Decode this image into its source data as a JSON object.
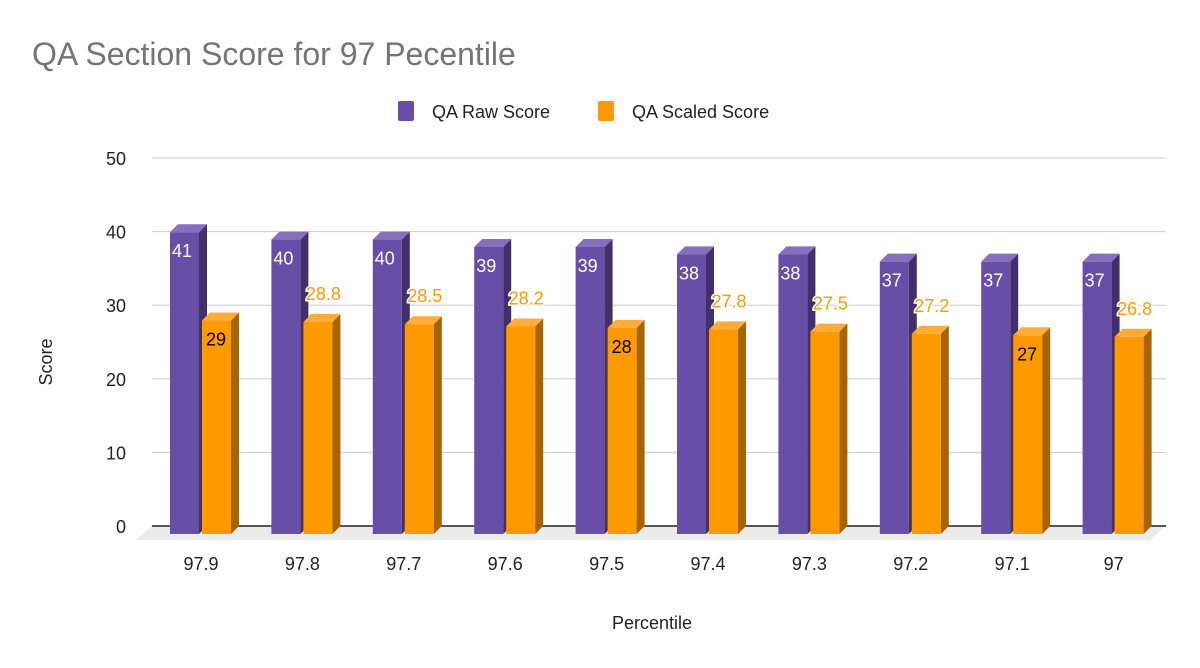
{
  "chart_data": {
    "type": "bar",
    "title": "QA Section Score for 97 Pecentile",
    "xlabel": "Percentile",
    "ylabel": "Score",
    "categories": [
      "97.9",
      "97.8",
      "97.7",
      "97.6",
      "97.5",
      "97.4",
      "97.3",
      "97.2",
      "97.1",
      "97"
    ],
    "series": [
      {
        "name": "QA Raw Score",
        "color": "#674ea7",
        "values": [
          41,
          40,
          40,
          39,
          39,
          38,
          38,
          37,
          37,
          37
        ]
      },
      {
        "name": "QA Scaled Score",
        "color": "#ff9900",
        "values": [
          29,
          28.8,
          28.5,
          28.2,
          28,
          27.8,
          27.5,
          27.2,
          27,
          26.8
        ]
      }
    ],
    "ylim": [
      0,
      50
    ],
    "yticks": [
      0,
      10,
      20,
      30,
      40,
      50
    ],
    "grid": true,
    "legend": "top",
    "style": "3d"
  }
}
